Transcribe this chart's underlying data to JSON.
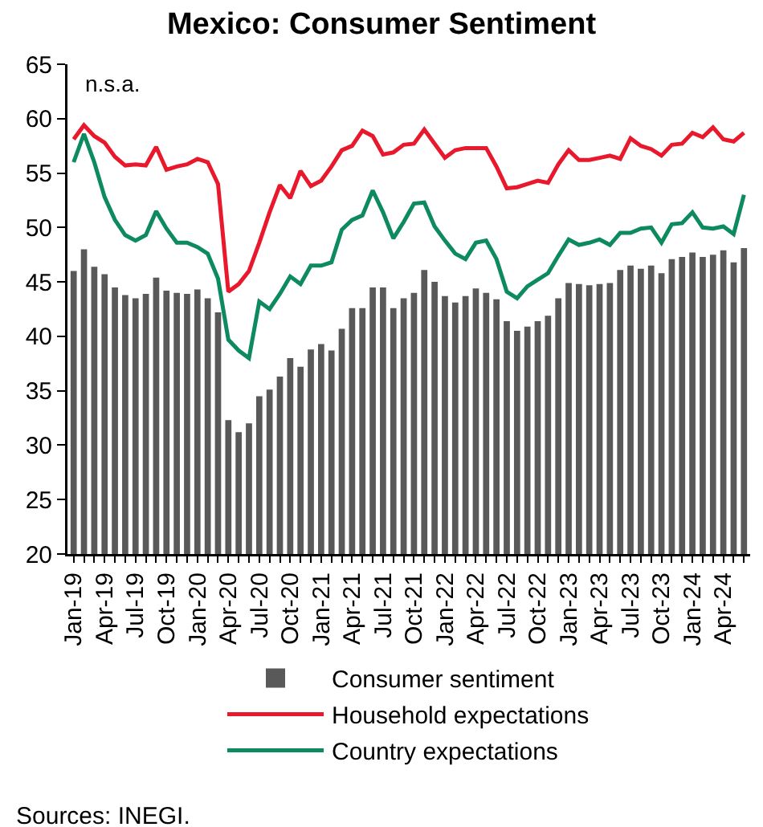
{
  "chart_data": {
    "type": "bar",
    "title": "Mexico: Consumer Sentiment",
    "annotations": [
      "n.s.a.",
      "Sources: INEGI."
    ],
    "categories": [
      "Jan-19",
      null,
      null,
      "Apr-19",
      null,
      null,
      "Jul-19",
      null,
      null,
      "Oct-19",
      null,
      null,
      "Jan-20",
      null,
      null,
      "Apr-20",
      null,
      null,
      "Jul-20",
      null,
      null,
      "Oct-20",
      null,
      null,
      "Jan-21",
      null,
      null,
      "Apr-21",
      null,
      null,
      "Jul-21",
      null,
      null,
      "Oct-21",
      null,
      null,
      "Jan-22",
      null,
      null,
      "Apr-22",
      null,
      null,
      "Jul-22",
      null,
      null,
      "Oct-22",
      null,
      null,
      "Jan-23",
      null,
      null,
      "Apr-23",
      null,
      null,
      "Jul-23",
      null,
      null,
      "Oct-23",
      null,
      null,
      "Jan-24",
      null,
      null,
      "Apr-24",
      null,
      null
    ],
    "series": [
      {
        "name": "Consumer sentiment",
        "color": "#595959",
        "values": [
          46.0,
          48.0,
          46.4,
          45.7,
          44.5,
          43.8,
          43.5,
          43.9,
          45.4,
          44.2,
          44.0,
          43.9,
          44.3,
          43.5,
          42.2,
          32.3,
          31.2,
          32.0,
          34.5,
          35.1,
          36.3,
          38.0,
          37.2,
          38.8,
          39.3,
          38.7,
          40.7,
          42.6,
          42.6,
          44.5,
          44.5,
          42.6,
          43.5,
          44.0,
          46.1,
          45.0,
          43.7,
          43.1,
          43.7,
          44.4,
          44.0,
          43.4,
          41.4,
          40.5,
          40.9,
          41.4,
          41.9,
          43.5,
          44.9,
          44.8,
          44.7,
          44.8,
          44.9,
          46.1,
          46.5,
          46.2,
          46.5,
          45.8,
          47.1,
          47.3,
          47.7,
          47.3,
          47.5,
          47.9,
          46.8,
          48.1
        ]
      },
      {
        "name": "Household expectations",
        "type": "line",
        "color": "#e8192c",
        "values": [
          58.1,
          59.4,
          58.4,
          57.8,
          56.5,
          55.7,
          55.8,
          55.7,
          57.4,
          55.3,
          55.6,
          55.8,
          56.3,
          56.0,
          54.0,
          44.1,
          44.8,
          46.0,
          48.6,
          51.4,
          53.9,
          52.7,
          55.2,
          53.8,
          54.3,
          55.6,
          57.1,
          57.5,
          58.9,
          58.4,
          56.7,
          56.9,
          57.6,
          57.7,
          59.0,
          57.7,
          56.4,
          57.1,
          57.3,
          57.3,
          57.3,
          55.6,
          53.6,
          53.7,
          54.0,
          54.3,
          54.1,
          55.8,
          57.1,
          56.2,
          56.2,
          56.4,
          56.6,
          56.3,
          58.2,
          57.5,
          57.2,
          56.6,
          57.6,
          57.7,
          58.7,
          58.3,
          59.2,
          58.1,
          57.9,
          58.7
        ]
      },
      {
        "name": "Country expectations",
        "type": "line",
        "color": "#0e8a5f",
        "values": [
          56.0,
          58.6,
          56.0,
          52.8,
          50.7,
          49.3,
          48.8,
          49.3,
          51.5,
          49.9,
          48.6,
          48.6,
          48.2,
          47.6,
          45.3,
          39.7,
          38.7,
          38.0,
          43.2,
          42.5,
          43.9,
          45.5,
          44.8,
          46.5,
          46.5,
          46.8,
          49.8,
          50.7,
          51.1,
          53.4,
          51.4,
          49.0,
          50.5,
          52.2,
          52.3,
          50.1,
          48.8,
          47.6,
          47.1,
          48.6,
          48.8,
          47.1,
          44.1,
          43.5,
          44.6,
          45.2,
          45.8,
          47.4,
          48.9,
          48.4,
          48.6,
          48.9,
          48.4,
          49.5,
          49.5,
          49.9,
          50.0,
          48.6,
          50.3,
          50.4,
          51.4,
          50.0,
          49.9,
          50.1,
          49.4,
          53.0
        ]
      }
    ],
    "ylim": [
      20,
      65
    ],
    "yticks": [
      20,
      25,
      30,
      35,
      40,
      45,
      50,
      55,
      60,
      65
    ],
    "grid": false,
    "legend": "bottom",
    "line_style": "solid",
    "marker": "none"
  }
}
